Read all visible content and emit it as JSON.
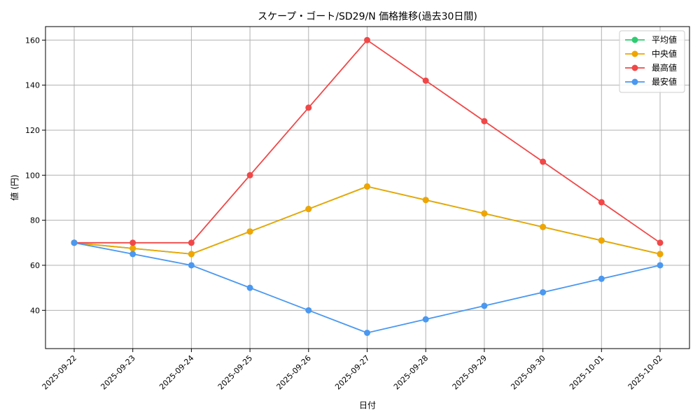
{
  "chart_data": {
    "type": "line",
    "title": "スケープ・ゴート/SD29/N 価格推移(過去30日間)",
    "xlabel": "日付",
    "ylabel": "値 (円)",
    "categories": [
      "2025-09-22",
      "2025-09-23",
      "2025-09-24",
      "2025-09-25",
      "2025-09-26",
      "2025-09-27",
      "2025-09-28",
      "2025-09-29",
      "2025-09-30",
      "2025-10-01",
      "2025-10-02"
    ],
    "ylim": [
      23,
      166
    ],
    "yticks": [
      40,
      60,
      80,
      100,
      120,
      140,
      160
    ],
    "grid": true,
    "legend_position": "top-right",
    "series": [
      {
        "name": "平均値",
        "color": "#2ecc71",
        "values": [
          70,
          67.5,
          65,
          75,
          85,
          95,
          89,
          83,
          77,
          71,
          65
        ]
      },
      {
        "name": "中央値",
        "color": "#f0a500",
        "values": [
          70,
          67.5,
          65,
          75,
          85,
          95,
          89,
          83,
          77,
          71,
          65
        ]
      },
      {
        "name": "最高値",
        "color": "#f04848",
        "values": [
          70,
          70,
          70,
          100,
          130,
          160,
          142,
          124,
          106,
          88,
          70
        ]
      },
      {
        "name": "最安値",
        "color": "#4a98f0",
        "values": [
          70,
          65,
          60,
          50,
          40,
          30,
          36,
          42,
          48,
          54,
          60
        ]
      }
    ]
  }
}
